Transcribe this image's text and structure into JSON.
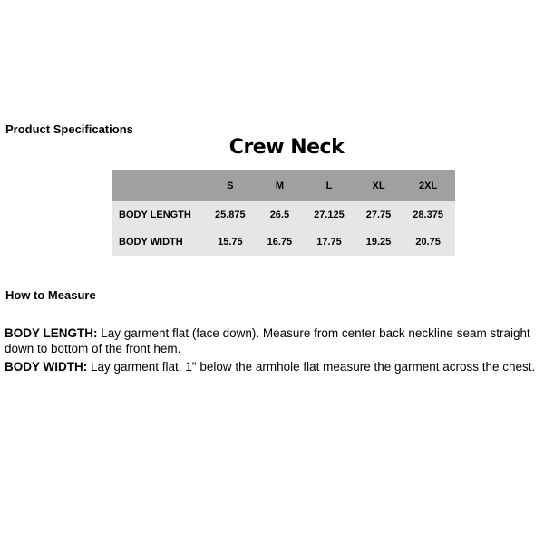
{
  "product_specifications": "Product Specifications",
  "table_title": "Crew Neck",
  "table": {
    "headers": [
      "",
      "S",
      "M",
      "L",
      "XL",
      "2XL"
    ],
    "rows": [
      {
        "label": "BODY LENGTH",
        "values": [
          "25.875",
          "26.5",
          "27.125",
          "27.75",
          "28.375"
        ]
      },
      {
        "label": "BODY WIDTH",
        "values": [
          "15.75",
          "16.75",
          "17.75",
          "19.25",
          "20.75"
        ]
      }
    ]
  },
  "how_to_measure": "How to Measure",
  "instructions": [
    {
      "term": "BODY LENGTH:",
      "text": " Lay garment flat (face down). Measure from center back neckline seam straight down to bottom of the front hem."
    },
    {
      "term": "BODY WIDTH:",
      "text": " Lay garment flat. 1\" below the armhole flat measure the garment across the chest."
    }
  ],
  "colors": {
    "header_bg": "#a0a0a0",
    "body_bg": "#e6e6e6"
  }
}
